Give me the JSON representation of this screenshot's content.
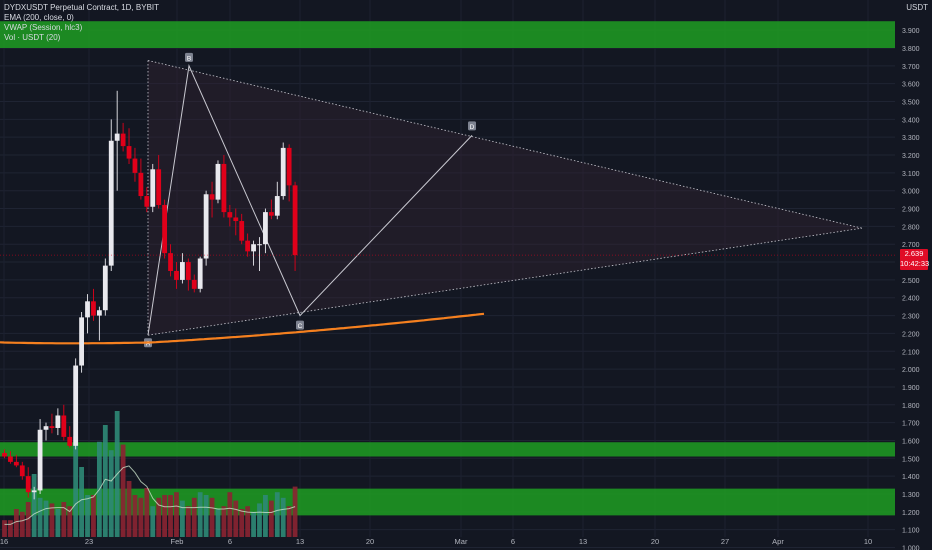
{
  "legend": {
    "line1": "DYDXUSDT Perpetual Contract, 1D, BYBIT",
    "line2": "EMA (200, close, 0)",
    "line3": "VWAP (Session, hlc3)",
    "line4": "Vol · USDT (20)"
  },
  "axis": {
    "currency": "USDT"
  },
  "last_price": {
    "value": "2.639",
    "countdown": "10:42:33"
  },
  "colors": {
    "background": "#131722",
    "up_candle": "#e9e9ee",
    "down_candle": "#e0001a",
    "ema": "#f5801f",
    "vwap": "#ffffff",
    "zone": "#1e9e22",
    "vol_up": "#2f8a77",
    "vol_down": "#8c2332",
    "pattern_lines": "#c9c9d1"
  },
  "chart_data": {
    "type": "candlestick",
    "title": "DYDXUSDT Perpetual Contract, 1D, BYBIT",
    "y_ticks": [
      "3.900",
      "3.800",
      "3.700",
      "3.600",
      "3.500",
      "3.400",
      "3.300",
      "3.200",
      "3.100",
      "3.000",
      "2.900",
      "2.800",
      "2.700",
      "2.600",
      "2.500",
      "2.400",
      "2.300",
      "2.200",
      "2.100",
      "2.000",
      "1.900",
      "1.800",
      "1.700",
      "1.600",
      "1.500",
      "1.400",
      "1.300",
      "1.200",
      "1.100",
      "1.000"
    ],
    "x_ticks": [
      "16",
      "23",
      "Feb",
      "6",
      "13",
      "20",
      "Mar",
      "6",
      "13",
      "20",
      "27",
      "Apr",
      "10"
    ],
    "ylim": [
      1.0,
      3.95
    ],
    "candles": [
      {
        "o": 1.53,
        "h": 1.55,
        "l": 1.5,
        "c": 1.51
      },
      {
        "o": 1.51,
        "h": 1.54,
        "l": 1.47,
        "c": 1.48
      },
      {
        "o": 1.48,
        "h": 1.52,
        "l": 1.45,
        "c": 1.46
      },
      {
        "o": 1.46,
        "h": 1.48,
        "l": 1.38,
        "c": 1.4
      },
      {
        "o": 1.4,
        "h": 1.45,
        "l": 1.28,
        "c": 1.31
      },
      {
        "o": 1.31,
        "h": 1.34,
        "l": 1.27,
        "c": 1.32
      },
      {
        "o": 1.32,
        "h": 1.72,
        "l": 1.3,
        "c": 1.66
      },
      {
        "o": 1.66,
        "h": 1.7,
        "l": 1.6,
        "c": 1.68
      },
      {
        "o": 1.68,
        "h": 1.75,
        "l": 1.64,
        "c": 1.67
      },
      {
        "o": 1.67,
        "h": 1.78,
        "l": 1.63,
        "c": 1.74
      },
      {
        "o": 1.74,
        "h": 1.8,
        "l": 1.6,
        "c": 1.62
      },
      {
        "o": 1.62,
        "h": 1.68,
        "l": 1.56,
        "c": 1.57
      },
      {
        "o": 1.57,
        "h": 2.06,
        "l": 1.55,
        "c": 2.02
      },
      {
        "o": 2.02,
        "h": 2.32,
        "l": 1.98,
        "c": 2.29
      },
      {
        "o": 2.29,
        "h": 2.42,
        "l": 2.2,
        "c": 2.38
      },
      {
        "o": 2.38,
        "h": 2.45,
        "l": 2.27,
        "c": 2.3
      },
      {
        "o": 2.3,
        "h": 2.35,
        "l": 2.16,
        "c": 2.33
      },
      {
        "o": 2.33,
        "h": 2.62,
        "l": 2.3,
        "c": 2.58
      },
      {
        "o": 2.58,
        "h": 3.4,
        "l": 2.55,
        "c": 3.28
      },
      {
        "o": 3.28,
        "h": 3.56,
        "l": 3.0,
        "c": 3.32
      },
      {
        "o": 3.32,
        "h": 3.38,
        "l": 3.22,
        "c": 3.25
      },
      {
        "o": 3.25,
        "h": 3.35,
        "l": 3.15,
        "c": 3.18
      },
      {
        "o": 3.18,
        "h": 3.24,
        "l": 3.05,
        "c": 3.1
      },
      {
        "o": 3.1,
        "h": 3.18,
        "l": 2.95,
        "c": 2.97
      },
      {
        "o": 2.97,
        "h": 3.02,
        "l": 2.88,
        "c": 2.91
      },
      {
        "o": 2.91,
        "h": 3.15,
        "l": 2.88,
        "c": 3.12
      },
      {
        "o": 3.12,
        "h": 3.2,
        "l": 2.9,
        "c": 2.92
      },
      {
        "o": 2.92,
        "h": 2.95,
        "l": 2.62,
        "c": 2.65
      },
      {
        "o": 2.65,
        "h": 2.7,
        "l": 2.52,
        "c": 2.55
      },
      {
        "o": 2.55,
        "h": 2.6,
        "l": 2.45,
        "c": 2.5
      },
      {
        "o": 2.5,
        "h": 2.65,
        "l": 2.48,
        "c": 2.6
      },
      {
        "o": 2.6,
        "h": 2.62,
        "l": 2.44,
        "c": 2.5
      },
      {
        "o": 2.5,
        "h": 2.53,
        "l": 2.43,
        "c": 2.45
      },
      {
        "o": 2.45,
        "h": 2.63,
        "l": 2.43,
        "c": 2.62
      },
      {
        "o": 2.62,
        "h": 3.0,
        "l": 2.58,
        "c": 2.98
      },
      {
        "o": 2.98,
        "h": 3.05,
        "l": 2.85,
        "c": 2.95
      },
      {
        "o": 2.95,
        "h": 3.17,
        "l": 2.93,
        "c": 3.15
      },
      {
        "o": 3.15,
        "h": 3.2,
        "l": 2.85,
        "c": 2.88
      },
      {
        "o": 2.88,
        "h": 2.92,
        "l": 2.8,
        "c": 2.85
      },
      {
        "o": 2.85,
        "h": 2.9,
        "l": 2.75,
        "c": 2.83
      },
      {
        "o": 2.83,
        "h": 2.87,
        "l": 2.7,
        "c": 2.72
      },
      {
        "o": 2.72,
        "h": 2.76,
        "l": 2.63,
        "c": 2.66
      },
      {
        "o": 2.66,
        "h": 2.72,
        "l": 2.58,
        "c": 2.7
      },
      {
        "o": 2.7,
        "h": 2.74,
        "l": 2.55,
        "c": 2.7
      },
      {
        "o": 2.7,
        "h": 2.9,
        "l": 2.65,
        "c": 2.88
      },
      {
        "o": 2.88,
        "h": 2.95,
        "l": 2.84,
        "c": 2.86
      },
      {
        "o": 2.86,
        "h": 3.05,
        "l": 2.84,
        "c": 2.97
      },
      {
        "o": 2.97,
        "h": 3.27,
        "l": 2.95,
        "c": 3.24
      },
      {
        "o": 3.24,
        "h": 3.26,
        "l": 2.94,
        "c": 3.03
      },
      {
        "o": 3.03,
        "h": 3.05,
        "l": 2.55,
        "c": 2.639
      }
    ],
    "volume": [
      0.12,
      0.12,
      0.2,
      0.18,
      0.25,
      0.45,
      0.28,
      0.26,
      0.24,
      0.2,
      0.25,
      0.22,
      0.72,
      0.5,
      0.3,
      0.3,
      0.68,
      0.8,
      0.62,
      0.9,
      0.66,
      0.4,
      0.3,
      0.28,
      0.35,
      0.22,
      0.28,
      0.3,
      0.3,
      0.32,
      0.26,
      0.22,
      0.28,
      0.32,
      0.3,
      0.28,
      0.2,
      0.22,
      0.32,
      0.26,
      0.2,
      0.22,
      0.18,
      0.24,
      0.3,
      0.26,
      0.32,
      0.28,
      0.22,
      0.36
    ],
    "ema200": {
      "from": 2.12,
      "to": 2.31
    },
    "zones": [
      [
        3.8,
        3.95
      ],
      [
        1.51,
        1.59
      ],
      [
        1.18,
        1.33
      ]
    ],
    "pattern": {
      "type": "triangle",
      "labels": [
        "A",
        "B",
        "C",
        "D"
      ],
      "apex_price": 2.79
    }
  }
}
